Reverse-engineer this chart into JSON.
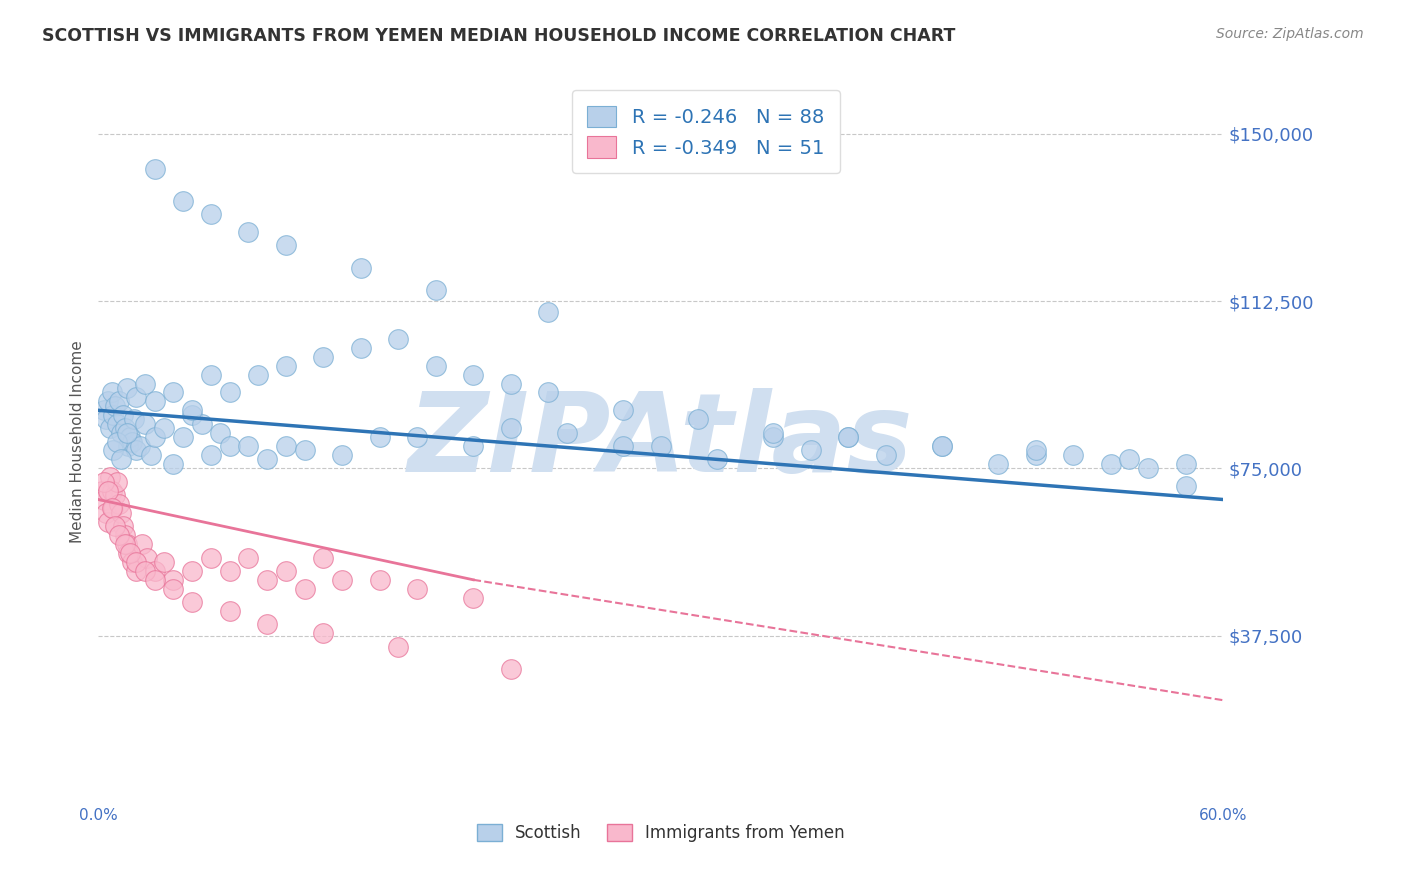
{
  "title": "SCOTTISH VS IMMIGRANTS FROM YEMEN MEDIAN HOUSEHOLD INCOME CORRELATION CHART",
  "source": "Source: ZipAtlas.com",
  "ylabel": "Median Household Income",
  "yticks": [
    0,
    37500,
    75000,
    112500,
    150000
  ],
  "ytick_labels": [
    "",
    "$37,500",
    "$75,000",
    "$112,500",
    "$150,000"
  ],
  "xlim": [
    0.0,
    60.0
  ],
  "ylim": [
    0,
    162000
  ],
  "background_color": "#ffffff",
  "grid_color": "#c8c8c8",
  "title_color": "#333333",
  "axis_label_color": "#4472c4",
  "watermark": "ZIPAtlas",
  "watermark_color": "#d0dff0",
  "legend_blue_label": "R = -0.246   N = 88",
  "legend_pink_label": "R = -0.349   N = 51",
  "legend_text_color": "#2e74b5",
  "scatter_blue_color": "#b8d0ea",
  "scatter_blue_edge": "#7bafd4",
  "scatter_pink_color": "#f9b8cc",
  "scatter_pink_edge": "#e87499",
  "trend_blue_color": "#2e74b5",
  "trend_pink_color": "#e87499",
  "blue_trend_x0": 0,
  "blue_trend_y0": 88000,
  "blue_trend_x1": 60,
  "blue_trend_y1": 68000,
  "pink_solid_x0": 0,
  "pink_solid_y0": 68000,
  "pink_solid_x1": 20,
  "pink_solid_y1": 50000,
  "pink_dash_x0": 20,
  "pink_dash_y0": 50000,
  "pink_dash_x1": 60,
  "pink_dash_y1": 23000,
  "blue_x": [
    0.3,
    0.4,
    0.5,
    0.6,
    0.7,
    0.8,
    0.9,
    1.0,
    1.1,
    1.2,
    1.3,
    1.4,
    1.5,
    1.6,
    1.7,
    1.8,
    1.9,
    2.0,
    2.2,
    2.5,
    2.8,
    3.0,
    3.5,
    4.0,
    4.5,
    5.0,
    5.5,
    6.0,
    6.5,
    7.0,
    8.0,
    9.0,
    10.0,
    11.0,
    13.0,
    15.0,
    17.0,
    20.0,
    22.0,
    25.0,
    28.0,
    30.0,
    33.0,
    36.0,
    38.0,
    40.0,
    42.0,
    45.0,
    48.0,
    50.0,
    52.0,
    54.0,
    56.0,
    58.0,
    0.8,
    1.0,
    1.2,
    1.5,
    2.0,
    2.5,
    3.0,
    4.0,
    5.0,
    6.0,
    7.0,
    8.5,
    10.0,
    12.0,
    14.0,
    16.0,
    18.0,
    20.0,
    22.0,
    24.0,
    28.0,
    32.0,
    36.0,
    40.0,
    45.0,
    50.0,
    55.0,
    58.0,
    3.0,
    4.5,
    6.0,
    8.0,
    10.0,
    14.0,
    18.0,
    24.0
  ],
  "blue_y": [
    88000,
    86000,
    90000,
    84000,
    92000,
    87000,
    89000,
    85000,
    90000,
    83000,
    87000,
    84000,
    93000,
    80000,
    82000,
    81000,
    86000,
    79000,
    80000,
    85000,
    78000,
    82000,
    84000,
    76000,
    82000,
    87000,
    85000,
    78000,
    83000,
    80000,
    80000,
    77000,
    80000,
    79000,
    78000,
    82000,
    82000,
    80000,
    84000,
    83000,
    80000,
    80000,
    77000,
    82000,
    79000,
    82000,
    78000,
    80000,
    76000,
    78000,
    78000,
    76000,
    75000,
    71000,
    79000,
    81000,
    77000,
    83000,
    91000,
    94000,
    90000,
    92000,
    88000,
    96000,
    92000,
    96000,
    98000,
    100000,
    102000,
    104000,
    98000,
    96000,
    94000,
    92000,
    88000,
    86000,
    83000,
    82000,
    80000,
    79000,
    77000,
    76000,
    142000,
    135000,
    132000,
    128000,
    125000,
    120000,
    115000,
    110000
  ],
  "pink_x": [
    0.2,
    0.3,
    0.4,
    0.5,
    0.6,
    0.7,
    0.8,
    0.9,
    1.0,
    1.1,
    1.2,
    1.3,
    1.4,
    1.5,
    1.6,
    1.8,
    2.0,
    2.3,
    2.6,
    3.0,
    3.5,
    4.0,
    5.0,
    6.0,
    7.0,
    8.0,
    9.0,
    10.0,
    11.0,
    12.0,
    13.0,
    15.0,
    17.0,
    20.0,
    0.3,
    0.5,
    0.7,
    0.9,
    1.1,
    1.4,
    1.7,
    2.0,
    2.5,
    3.0,
    4.0,
    5.0,
    7.0,
    9.0,
    12.0,
    16.0,
    22.0
  ],
  "pink_y": [
    70000,
    68000,
    65000,
    63000,
    73000,
    70000,
    66000,
    69000,
    72000,
    67000,
    65000,
    62000,
    60000,
    58000,
    56000,
    54000,
    52000,
    58000,
    55000,
    52000,
    54000,
    50000,
    52000,
    55000,
    52000,
    55000,
    50000,
    52000,
    48000,
    55000,
    50000,
    50000,
    48000,
    46000,
    72000,
    70000,
    66000,
    62000,
    60000,
    58000,
    56000,
    54000,
    52000,
    50000,
    48000,
    45000,
    43000,
    40000,
    38000,
    35000,
    30000
  ]
}
